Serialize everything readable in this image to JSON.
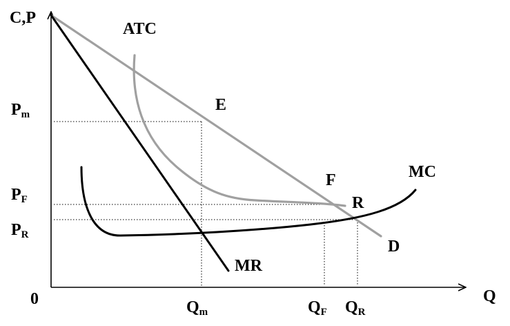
{
  "labels": {
    "y_axis": "C,P",
    "x_axis": "Q",
    "origin": "0",
    "atc": "ATC",
    "mc": "MC",
    "mr": "MR",
    "demand": "D",
    "point_e": "E",
    "point_f": "F",
    "point_r": "R",
    "p_m": {
      "main": "P",
      "sub": "m"
    },
    "p_f": {
      "main": "P",
      "sub": "F"
    },
    "p_r": {
      "main": "P",
      "sub": "R"
    },
    "q_m": {
      "main": "Q",
      "sub": "m"
    },
    "q_f": {
      "main": "Q",
      "sub": "F"
    },
    "q_r": {
      "main": "Q",
      "sub": "R"
    }
  },
  "colors": {
    "black_curves": "#000000",
    "gray_curves": "#a0a0a0",
    "axes": "#000000"
  }
}
